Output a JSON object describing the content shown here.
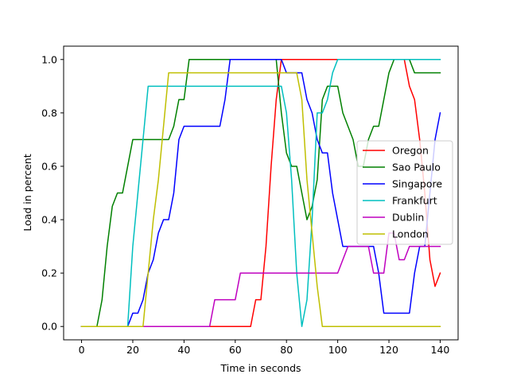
{
  "chart_data": {
    "type": "line",
    "title": "",
    "xlabel": "Time in seconds",
    "ylabel": "Load in percent",
    "xlim": [
      -7,
      147
    ],
    "ylim": [
      -0.05,
      1.05
    ],
    "xticks": [
      0,
      20,
      40,
      60,
      80,
      100,
      120,
      140
    ],
    "yticks": [
      0.0,
      0.2,
      0.4,
      0.6,
      0.8,
      1.0
    ],
    "xtick_labels": [
      "0",
      "20",
      "40",
      "60",
      "80",
      "100",
      "120",
      "140"
    ],
    "ytick_labels": [
      "0.0",
      "0.2",
      "0.4",
      "0.6",
      "0.8",
      "1.0"
    ],
    "grid": false,
    "legend_position": "center-right",
    "series": [
      {
        "name": "Oregon",
        "color": "#ff0000",
        "x": [
          0,
          66,
          68,
          70,
          72,
          74,
          76,
          78,
          80,
          98,
          100,
          110,
          120,
          126,
          128,
          130,
          132,
          134,
          136,
          138,
          140
        ],
        "y": [
          0,
          0,
          0.1,
          0.1,
          0.3,
          0.6,
          0.85,
          1.0,
          1.0,
          1.0,
          1.0,
          1.0,
          1.0,
          1.0,
          0.9,
          0.85,
          0.7,
          0.5,
          0.25,
          0.15,
          0.2
        ]
      },
      {
        "name": "Sao Paulo",
        "color": "#008000",
        "x": [
          0,
          6,
          8,
          10,
          12,
          14,
          16,
          18,
          20,
          22,
          24,
          26,
          28,
          30,
          32,
          34,
          36,
          38,
          40,
          42,
          76,
          78,
          80,
          82,
          84,
          86,
          88,
          90,
          92,
          94,
          96,
          98,
          100,
          102,
          104,
          106,
          108,
          110,
          112,
          114,
          116,
          118,
          120,
          122,
          124,
          126,
          128,
          130,
          140
        ],
        "y": [
          0,
          0,
          0.1,
          0.3,
          0.45,
          0.5,
          0.5,
          0.6,
          0.7,
          0.7,
          0.7,
          0.7,
          0.7,
          0.7,
          0.7,
          0.7,
          0.75,
          0.85,
          0.85,
          1.0,
          1.0,
          0.8,
          0.65,
          0.6,
          0.6,
          0.5,
          0.4,
          0.45,
          0.55,
          0.85,
          0.9,
          0.9,
          0.9,
          0.8,
          0.75,
          0.7,
          0.6,
          0.6,
          0.7,
          0.75,
          0.75,
          0.85,
          0.95,
          1.0,
          1.0,
          1.0,
          1.0,
          0.95,
          0.95
        ]
      },
      {
        "name": "Singapore",
        "color": "#0000ff",
        "x": [
          0,
          18,
          20,
          22,
          24,
          26,
          28,
          30,
          32,
          34,
          36,
          38,
          40,
          42,
          44,
          46,
          48,
          50,
          52,
          54,
          56,
          58,
          60,
          62,
          64,
          66,
          68,
          70,
          72,
          74,
          76,
          78,
          80,
          82,
          84,
          86,
          88,
          90,
          92,
          94,
          96,
          98,
          100,
          102,
          104,
          106,
          108,
          110,
          112,
          114,
          116,
          118,
          120,
          122,
          124,
          126,
          128,
          130,
          132,
          134,
          136,
          138,
          140
        ],
        "y": [
          0,
          0,
          0.05,
          0.05,
          0.1,
          0.2,
          0.25,
          0.35,
          0.4,
          0.4,
          0.5,
          0.7,
          0.75,
          0.75,
          0.75,
          0.75,
          0.75,
          0.75,
          0.75,
          0.75,
          0.85,
          1.0,
          1.0,
          1.0,
          1.0,
          1.0,
          1.0,
          1.0,
          1.0,
          1.0,
          1.0,
          1.0,
          0.95,
          0.95,
          0.95,
          0.95,
          0.85,
          0.8,
          0.7,
          0.65,
          0.65,
          0.5,
          0.4,
          0.3,
          0.3,
          0.3,
          0.3,
          0.3,
          0.3,
          0.3,
          0.2,
          0.05,
          0.05,
          0.05,
          0.05,
          0.05,
          0.05,
          0.2,
          0.3,
          0.3,
          0.5,
          0.7,
          0.8
        ]
      },
      {
        "name": "Frankfurt",
        "color": "#00bfbf",
        "x": [
          0,
          18,
          20,
          22,
          24,
          26,
          28,
          76,
          78,
          80,
          82,
          84,
          86,
          88,
          90,
          92,
          94,
          96,
          98,
          100,
          140
        ],
        "y": [
          0,
          0,
          0.3,
          0.5,
          0.7,
          0.9,
          0.9,
          0.9,
          0.9,
          0.8,
          0.55,
          0.2,
          0.0,
          0.1,
          0.4,
          0.8,
          0.8,
          0.85,
          0.95,
          1.0,
          1.0
        ]
      },
      {
        "name": "Dublin",
        "color": "#bf00bf",
        "x": [
          0,
          50,
          52,
          54,
          56,
          58,
          60,
          62,
          64,
          66,
          68,
          70,
          72,
          74,
          76,
          78,
          80,
          82,
          84,
          86,
          88,
          90,
          92,
          94,
          96,
          98,
          100,
          102,
          104,
          106,
          108,
          110,
          112,
          114,
          116,
          118,
          120,
          122,
          124,
          126,
          128,
          130,
          132,
          134,
          136,
          138,
          140
        ],
        "y": [
          0,
          0,
          0.1,
          0.1,
          0.1,
          0.1,
          0.1,
          0.2,
          0.2,
          0.2,
          0.2,
          0.2,
          0.2,
          0.2,
          0.2,
          0.2,
          0.2,
          0.2,
          0.2,
          0.2,
          0.2,
          0.2,
          0.2,
          0.2,
          0.2,
          0.2,
          0.2,
          0.25,
          0.3,
          0.3,
          0.3,
          0.3,
          0.3,
          0.2,
          0.2,
          0.2,
          0.35,
          0.35,
          0.25,
          0.25,
          0.3,
          0.3,
          0.3,
          0.3,
          0.3,
          0.3,
          0.3
        ]
      },
      {
        "name": "London",
        "color": "#bfbf00",
        "x": [
          0,
          24,
          26,
          28,
          30,
          32,
          34,
          36,
          84,
          86,
          88,
          90,
          92,
          94,
          96,
          140
        ],
        "y": [
          0,
          0,
          0.2,
          0.4,
          0.55,
          0.75,
          0.95,
          0.95,
          0.95,
          0.85,
          0.55,
          0.35,
          0.15,
          0.0,
          0.0,
          0.0
        ]
      }
    ]
  }
}
